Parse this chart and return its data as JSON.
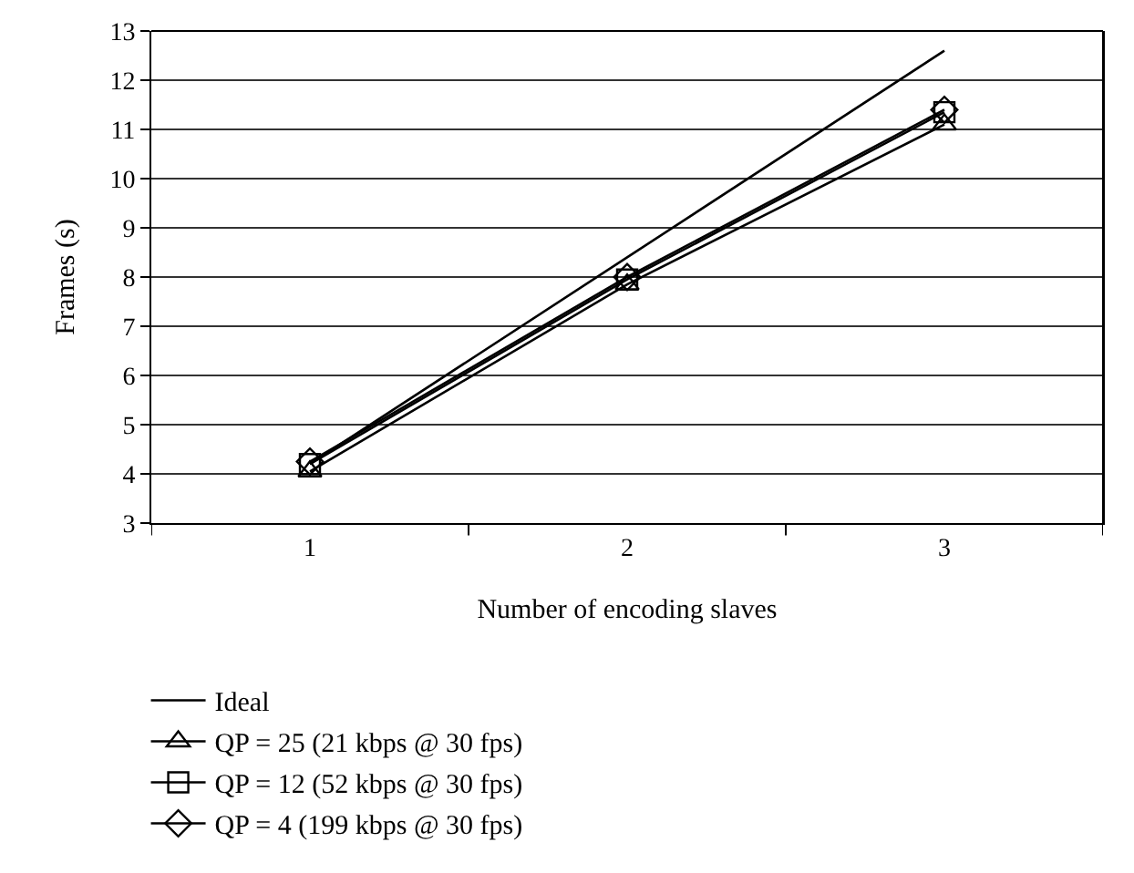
{
  "chart_data": {
    "type": "line",
    "xlabel": "Number of encoding slaves",
    "ylabel": "Frames (s)",
    "categories": [
      "1",
      "2",
      "3"
    ],
    "ylim": [
      3,
      13
    ],
    "yticks": [
      3,
      4,
      5,
      6,
      7,
      8,
      9,
      10,
      11,
      12,
      13
    ],
    "grid": "y",
    "legend": "bottom left",
    "series": [
      {
        "name": "Ideal",
        "color": "#000000",
        "marker": "none",
        "values": [
          4.2,
          8.4,
          12.6
        ]
      },
      {
        "name": "QP = 25 (21 kbps @ 30 fps)",
        "color": "#000000",
        "marker": "triangle",
        "values": [
          4.05,
          7.85,
          11.1
        ]
      },
      {
        "name": "QP = 12 (52 kbps @ 30 fps)",
        "color": "#000000",
        "marker": "square",
        "values": [
          4.2,
          7.95,
          11.35
        ]
      },
      {
        "name": "QP = 4 (199 kbps @ 30 fps)",
        "color": "#000000",
        "marker": "diamond",
        "values": [
          4.25,
          8.0,
          11.4
        ]
      }
    ]
  }
}
